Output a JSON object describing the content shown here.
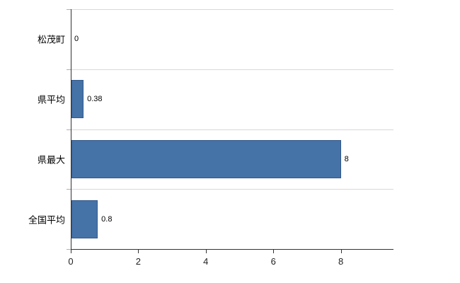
{
  "chart_data": {
    "type": "bar",
    "orientation": "horizontal",
    "title": "",
    "categories": [
      "松茂町",
      "県平均",
      "県最大",
      "全国平均"
    ],
    "values": [
      0,
      0.38,
      8,
      0.8
    ],
    "value_labels": [
      "0",
      "0.38",
      "8",
      "0.8"
    ],
    "x_ticks": [
      0,
      2,
      4,
      6,
      8
    ],
    "x_tick_labels": [
      "0",
      "2",
      "4",
      "6",
      "8"
    ],
    "xlim": [
      0,
      9.56
    ],
    "grid": true,
    "legend_position": "none",
    "bar_color": "#4572A7",
    "bar_border_color": "#35598a",
    "gridline_color": "#d8d8d8",
    "axis_color": "#333333",
    "background_color": "#ffffff"
  }
}
